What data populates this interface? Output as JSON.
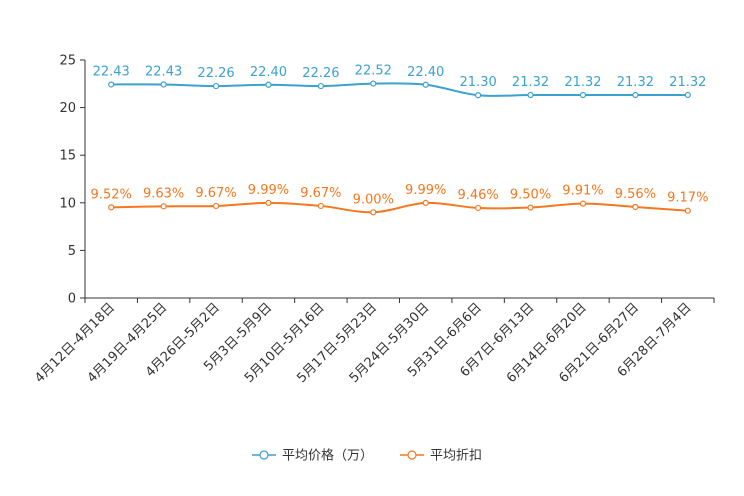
{
  "chart_data": {
    "type": "line",
    "title": "",
    "xlabel": "",
    "ylabel": "",
    "ylim": [
      0,
      25
    ],
    "yticks": [
      0,
      5,
      10,
      15,
      20,
      25
    ],
    "grid": false,
    "legend_position": "bottom-center",
    "categories": [
      "4月12日-4月18日",
      "4月19日-4月25日",
      "4月26日-5月2日",
      "5月3日-5月9日",
      "5月10日-5月16日",
      "5月17日-5月23日",
      "5月24日-5月30日",
      "5月31日-6月6日",
      "6月7日-6月13日",
      "6月14日-6月20日",
      "6月21日-6月27日",
      "6月28日-7月4日"
    ],
    "series": [
      {
        "name": "平均价格（万）",
        "color": "#3ba1d0",
        "values": [
          22.43,
          22.43,
          22.26,
          22.4,
          22.26,
          22.52,
          22.4,
          21.3,
          21.32,
          21.32,
          21.32,
          21.32
        ],
        "labels": [
          "22.43",
          "22.43",
          "22.26",
          "22.40",
          "22.26",
          "22.52",
          "22.40",
          "21.30",
          "21.32",
          "21.32",
          "21.32",
          "21.32"
        ]
      },
      {
        "name": "平均折扣",
        "color": "#f5771f",
        "values": [
          9.52,
          9.63,
          9.67,
          9.99,
          9.67,
          9.0,
          9.99,
          9.46,
          9.5,
          9.91,
          9.56,
          9.17
        ],
        "labels": [
          "9.52%",
          "9.63%",
          "9.67%",
          "9.99%",
          "9.67%",
          "9.00%",
          "9.99%",
          "9.46%",
          "9.50%",
          "9.91%",
          "9.56%",
          "9.17%"
        ]
      }
    ]
  }
}
